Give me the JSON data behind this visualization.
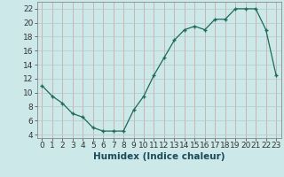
{
  "x": [
    0,
    1,
    2,
    3,
    4,
    5,
    6,
    7,
    8,
    9,
    10,
    11,
    12,
    13,
    14,
    15,
    16,
    17,
    18,
    19,
    20,
    21,
    22,
    23
  ],
  "y": [
    11,
    9.5,
    8.5,
    7,
    6.5,
    5,
    4.5,
    4.5,
    4.5,
    7.5,
    9.5,
    12.5,
    15,
    17.5,
    19,
    19.5,
    19,
    20.5,
    20.5,
    22,
    22,
    22,
    19,
    12.5
  ],
  "line_color": "#1a6b5a",
  "marker_color": "#1a6b5a",
  "bg_color": "#cde8e8",
  "grid_color_v": "#c8a0a0",
  "grid_color_h": "#b8c8c0",
  "xlabel": "Humidex (Indice chaleur)",
  "xlim": [
    -0.5,
    23.5
  ],
  "ylim": [
    3.5,
    23
  ],
  "yticks": [
    4,
    6,
    8,
    10,
    12,
    14,
    16,
    18,
    20,
    22
  ],
  "xticks": [
    0,
    1,
    2,
    3,
    4,
    5,
    6,
    7,
    8,
    9,
    10,
    11,
    12,
    13,
    14,
    15,
    16,
    17,
    18,
    19,
    20,
    21,
    22,
    23
  ],
  "tick_fontsize": 6.5,
  "xlabel_fontsize": 7.5
}
